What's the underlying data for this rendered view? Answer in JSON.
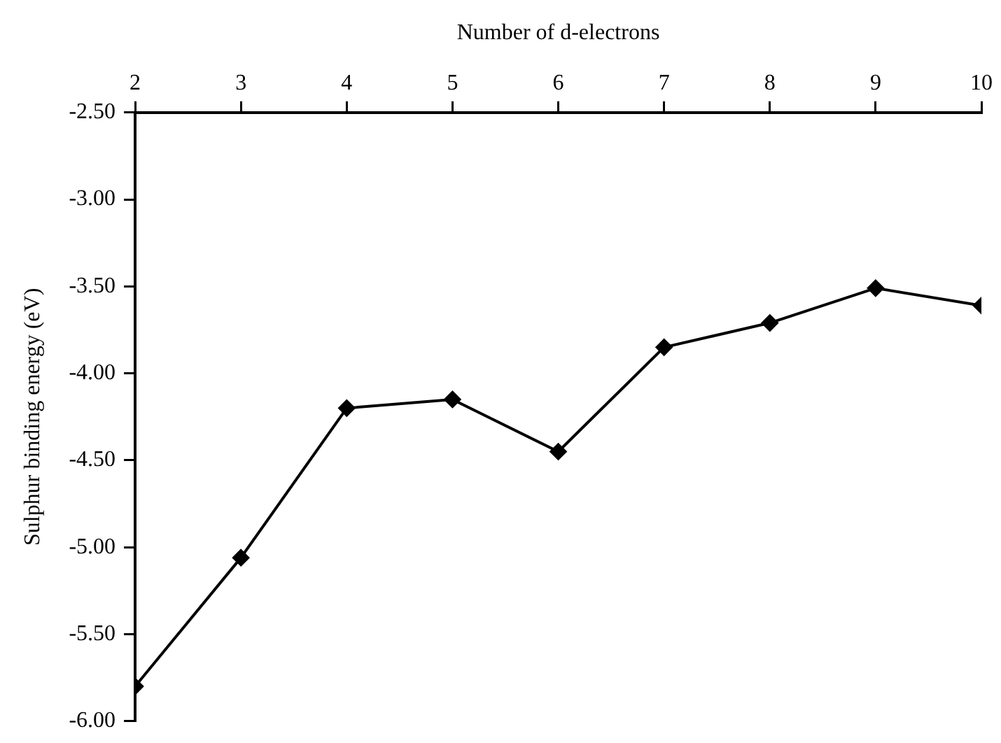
{
  "chart_data": {
    "type": "line",
    "xlabel": "Number of d-electrons",
    "ylabel": "Sulphur binding energy (eV)",
    "x": [
      2,
      3,
      4,
      5,
      6,
      7,
      8,
      9,
      10
    ],
    "values": [
      -5.8,
      -5.06,
      -4.2,
      -4.15,
      -4.45,
      -3.85,
      -3.71,
      -3.51,
      -3.61
    ],
    "color": "#000000",
    "marker": "diamond",
    "line_style": "solid",
    "grid": false,
    "legend": false,
    "xlim": [
      2,
      10
    ],
    "xticks": [
      2,
      3,
      4,
      5,
      6,
      7,
      8,
      9,
      10
    ],
    "ylim": [
      -6,
      -2.5
    ],
    "yticks": [
      {
        "value": -2.5,
        "label": "-2.50"
      },
      {
        "value": -3,
        "label": "-3.00"
      },
      {
        "value": -3.5,
        "label": "-3.50"
      },
      {
        "value": -4,
        "label": "-4.00"
      },
      {
        "value": -4.5,
        "label": "-4.50"
      },
      {
        "value": -5,
        "label": "-5.00"
      },
      {
        "value": -5.5,
        "label": "-5.50"
      },
      {
        "value": -6,
        "label": "-6.00"
      }
    ]
  }
}
